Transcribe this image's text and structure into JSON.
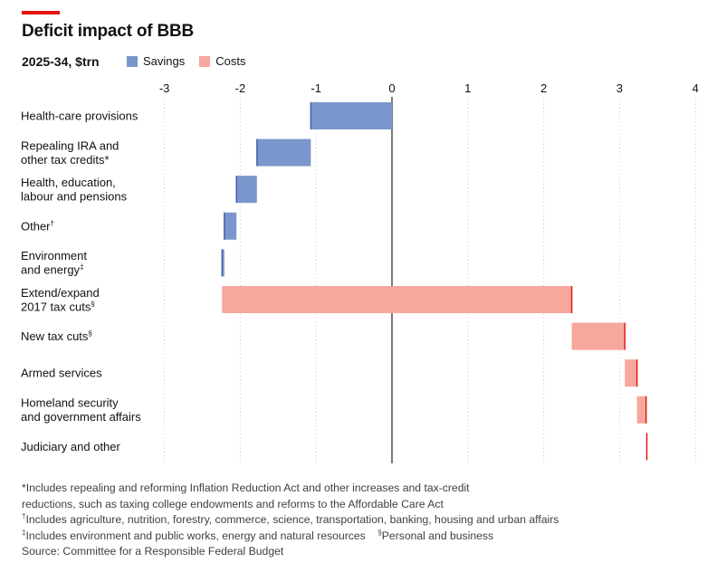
{
  "title": "Deficit impact of BBB",
  "subtitle": "2025-34, $trn",
  "legend": {
    "savings_label": "Savings",
    "costs_label": "Costs"
  },
  "colors": {
    "accent": "#e3120b",
    "savings": "#7b96cc",
    "savings_edge": "#3f5ea6",
    "costs": "#f7a79b",
    "costs_edge": "#e3120b",
    "axis": "#333333",
    "grid": "#c8c8c8"
  },
  "notes": {
    "n1a": "*Includes repealing and reforming Inflation Reduction Act and other increases and tax-credit",
    "n1b": "reductions, such as taxing college endowments and reforms to the Affordable Care Act",
    "n2": "Includes agriculture, nutrition, forestry, commerce, science, transportation, banking, housing and urban affairs",
    "n3": "Includes environment and public works, energy and natural resources",
    "n4": "Personal and business",
    "source": "Source: Committee for a Responsible Federal Budget"
  },
  "chart_data": {
    "type": "bar",
    "subtype": "waterfall-horizontal",
    "x_ticks": [
      "-3",
      "-2",
      "-1",
      "0",
      "1",
      "2",
      "3",
      "4"
    ],
    "xlim": [
      -3,
      4
    ],
    "grid": true,
    "categories": [
      {
        "lines": [
          "Health-care provisions"
        ],
        "sup": "",
        "start": 0,
        "end": -1.07,
        "kind": "savings"
      },
      {
        "lines": [
          "Repealing IRA and",
          "other tax credits*"
        ],
        "sup": "",
        "start": -1.07,
        "end": -1.78,
        "kind": "savings"
      },
      {
        "lines": [
          "Health, education,",
          "labour and pensions"
        ],
        "sup": "",
        "start": -1.78,
        "end": -2.05,
        "kind": "savings"
      },
      {
        "lines": [
          "Other"
        ],
        "sup": "†",
        "start": -2.05,
        "end": -2.21,
        "kind": "savings"
      },
      {
        "lines": [
          "Environment",
          "and energy"
        ],
        "sup": "‡",
        "start": -2.21,
        "end": -2.24,
        "kind": "savings"
      },
      {
        "lines": [
          "Extend/expand",
          "2017 tax cuts"
        ],
        "sup": "§",
        "start": -2.24,
        "end": 2.37,
        "kind": "costs"
      },
      {
        "lines": [
          "New tax cuts"
        ],
        "sup": "§",
        "start": 2.37,
        "end": 3.07,
        "kind": "costs"
      },
      {
        "lines": [
          "Armed services"
        ],
        "sup": "",
        "start": 3.07,
        "end": 3.23,
        "kind": "costs"
      },
      {
        "lines": [
          "Homeland security",
          "and government affairs"
        ],
        "sup": "",
        "start": 3.23,
        "end": 3.35,
        "kind": "costs"
      },
      {
        "lines": [
          "Judiciary and other"
        ],
        "sup": "",
        "start": 3.35,
        "end": 3.36,
        "kind": "costs"
      }
    ]
  }
}
